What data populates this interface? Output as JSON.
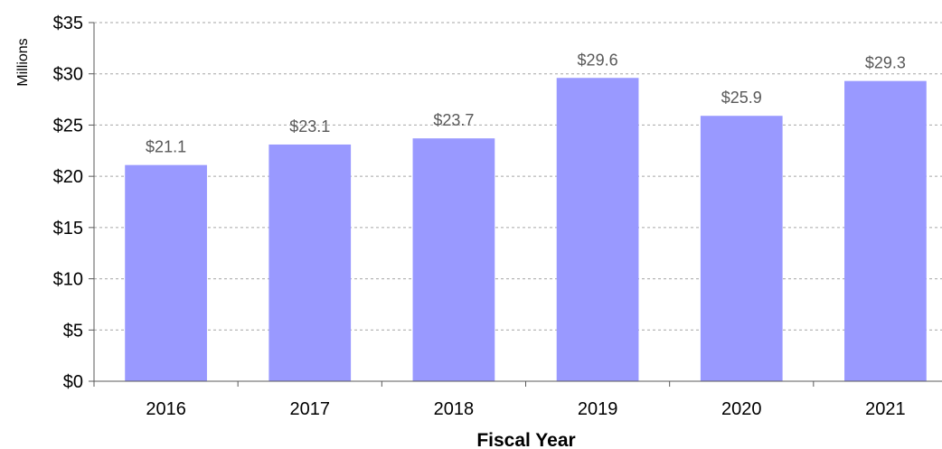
{
  "chart_data": {
    "type": "bar",
    "categories": [
      "2016",
      "2017",
      "2018",
      "2019",
      "2020",
      "2021"
    ],
    "values": [
      21.1,
      23.1,
      23.7,
      29.6,
      25.9,
      29.3
    ],
    "data_labels": [
      "$21.1",
      "$23.1",
      "$23.7",
      "$29.6",
      "$25.9",
      "$29.3"
    ],
    "xlabel": "Fiscal Year",
    "ylabel": "Millions",
    "ylim": [
      0,
      35
    ],
    "yticks": [
      0,
      5,
      10,
      15,
      20,
      25,
      30,
      35
    ],
    "ytick_labels": [
      "$0",
      "$5",
      "$10",
      "$15",
      "$20",
      "$25",
      "$30",
      "$35"
    ],
    "grid": "horizontal dashed",
    "legend": "none",
    "bar_color": "#9999ff"
  }
}
